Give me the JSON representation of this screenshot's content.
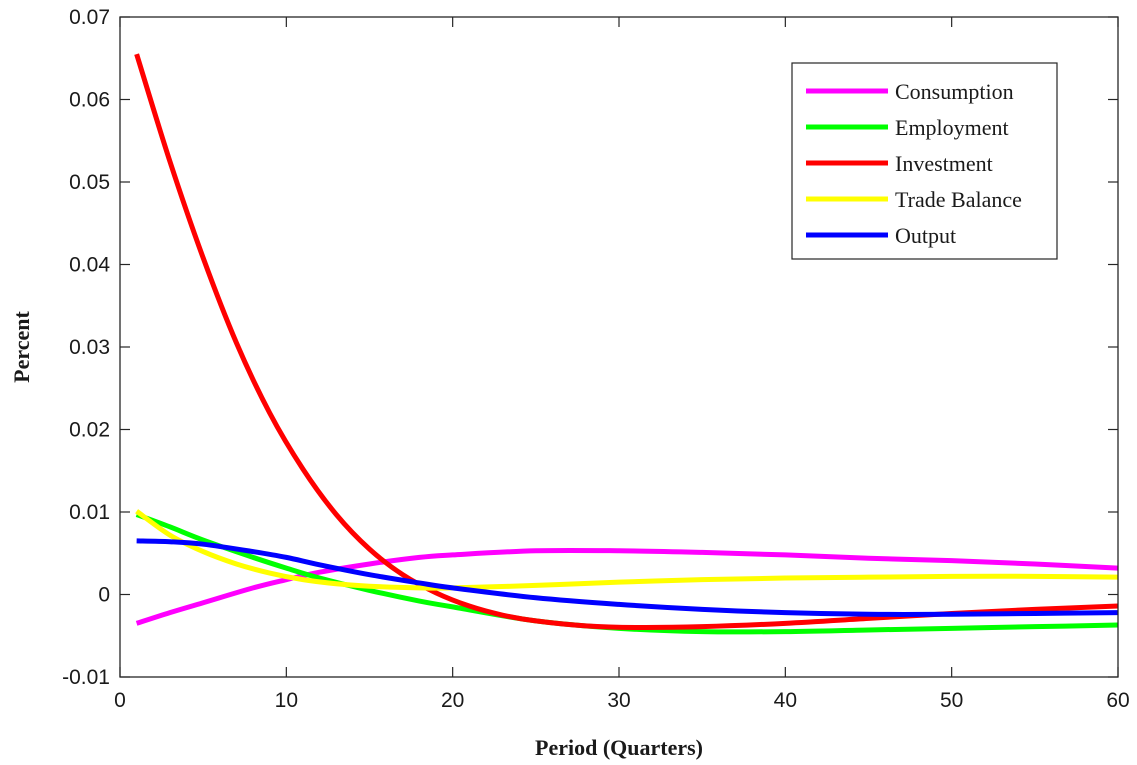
{
  "chart_data": {
    "type": "line",
    "title": "",
    "xlabel": "Period (Quarters)",
    "ylabel": "Percent",
    "xlim": [
      0,
      60
    ],
    "ylim": [
      -0.01,
      0.07
    ],
    "xticks": [
      0,
      10,
      20,
      30,
      40,
      50,
      60
    ],
    "xtick_labels": [
      "0",
      "10",
      "20",
      "30",
      "40",
      "50",
      "60"
    ],
    "yticks": [
      -0.01,
      0,
      0.01,
      0.02,
      0.03,
      0.04,
      0.05,
      0.06,
      0.07
    ],
    "ytick_labels": [
      "-0.01",
      "0",
      "0.01",
      "0.02",
      "0.03",
      "0.04",
      "0.05",
      "0.06",
      "0.07"
    ],
    "grid": false,
    "legend_position": "top-right",
    "series": [
      {
        "name": "Consumption",
        "color": "#ff00ff",
        "x": [
          1,
          3,
          5,
          8,
          10,
          12,
          15,
          18,
          20,
          25,
          30,
          35,
          40,
          45,
          50,
          55,
          60
        ],
        "y": [
          -0.0035,
          -0.0022,
          -0.001,
          0.0008,
          0.0018,
          0.0027,
          0.0037,
          0.0045,
          0.0048,
          0.0053,
          0.0053,
          0.0051,
          0.0048,
          0.0044,
          0.0041,
          0.0037,
          0.0032
        ]
      },
      {
        "name": "Employment",
        "color": "#00ff00",
        "x": [
          1,
          3,
          5,
          8,
          10,
          12,
          15,
          18,
          20,
          25,
          30,
          35,
          40,
          45,
          50,
          55,
          60
        ],
        "y": [
          0.0097,
          0.0082,
          0.0066,
          0.0045,
          0.0032,
          0.002,
          0.0005,
          -0.0008,
          -0.0015,
          -0.0032,
          -0.0041,
          -0.0045,
          -0.0045,
          -0.0043,
          -0.0041,
          -0.0039,
          -0.0037
        ]
      },
      {
        "name": "Investment",
        "color": "#ff0000",
        "x": [
          1,
          3,
          5,
          7,
          9,
          11,
          13,
          15,
          17,
          19,
          21,
          23,
          25,
          28,
          31,
          35,
          40,
          45,
          50,
          55,
          60
        ],
        "y": [
          0.0655,
          0.0525,
          0.0408,
          0.0305,
          0.022,
          0.0152,
          0.0097,
          0.0055,
          0.0024,
          0.0002,
          -0.0014,
          -0.0025,
          -0.0032,
          -0.0038,
          -0.004,
          -0.0039,
          -0.0035,
          -0.0029,
          -0.0023,
          -0.0018,
          -0.0014
        ]
      },
      {
        "name": "Trade Balance",
        "color": "#ffff00",
        "x": [
          1,
          3,
          5,
          7,
          9,
          11,
          13,
          15,
          18,
          20,
          25,
          30,
          35,
          40,
          45,
          50,
          55,
          60
        ],
        "y": [
          0.0101,
          0.0072,
          0.0052,
          0.0037,
          0.0026,
          0.0018,
          0.0013,
          0.001,
          0.0008,
          0.0008,
          0.0011,
          0.0015,
          0.0018,
          0.002,
          0.0021,
          0.0022,
          0.0022,
          0.0021
        ]
      },
      {
        "name": "Output",
        "color": "#0000ff",
        "x": [
          1,
          3,
          5,
          8,
          10,
          12,
          15,
          18,
          20,
          25,
          30,
          35,
          40,
          45,
          50,
          55,
          60
        ],
        "y": [
          0.0065,
          0.0064,
          0.0061,
          0.0052,
          0.0045,
          0.0036,
          0.0024,
          0.0014,
          0.0008,
          -0.0004,
          -0.0012,
          -0.0018,
          -0.0022,
          -0.0024,
          -0.0024,
          -0.0023,
          -0.0022
        ]
      }
    ]
  }
}
